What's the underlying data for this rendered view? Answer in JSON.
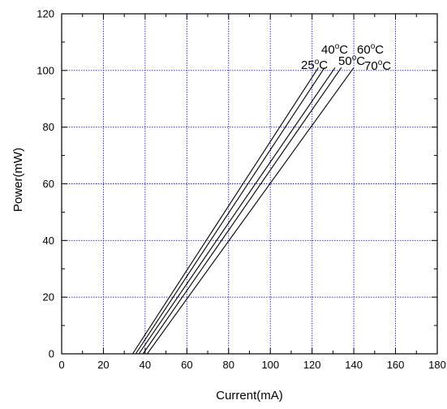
{
  "colors": {
    "grid": "#2020c8",
    "axis": "#000000",
    "line": "#000000",
    "background": "#ffffff"
  },
  "chart_data": {
    "type": "line",
    "title": "",
    "xlabel": "Current(mA)",
    "ylabel": "Power(mW)",
    "xlim": [
      0,
      180
    ],
    "ylim": [
      0,
      120
    ],
    "xticks": [
      0,
      20,
      40,
      60,
      80,
      100,
      120,
      140,
      160,
      180
    ],
    "yticks": [
      0,
      20,
      40,
      60,
      80,
      100,
      120
    ],
    "grid": true,
    "legend": "none",
    "series": [
      {
        "name": "25°C",
        "x": [
          0,
          34,
          123
        ],
        "y": [
          0,
          0,
          101
        ]
      },
      {
        "name": "40°C",
        "x": [
          0,
          35.5,
          126
        ],
        "y": [
          0,
          0,
          101
        ]
      },
      {
        "name": "50°C",
        "x": [
          0,
          37,
          131
        ],
        "y": [
          0,
          0,
          101
        ]
      },
      {
        "name": "60°C",
        "x": [
          0,
          39,
          134
        ],
        "y": [
          0,
          0,
          101
        ]
      },
      {
        "name": "70°C",
        "x": [
          0,
          41,
          140
        ],
        "y": [
          0,
          0,
          101
        ]
      }
    ]
  }
}
